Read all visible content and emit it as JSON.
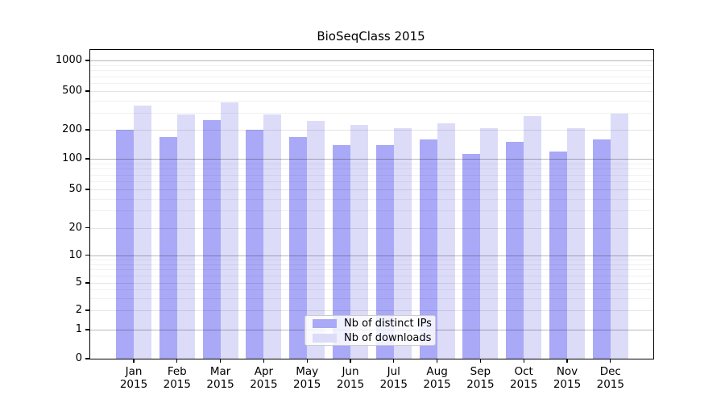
{
  "title": "BioSeqClass 2015",
  "chart_data": {
    "type": "bar",
    "title": "BioSeqClass 2015",
    "categories": [
      "Jan 2015",
      "Feb 2015",
      "Mar 2015",
      "Apr 2015",
      "May 2015",
      "Jun 2015",
      "Jul 2015",
      "Aug 2015",
      "Sep 2015",
      "Oct 2015",
      "Nov 2015",
      "Dec 2015"
    ],
    "series": [
      {
        "name": "Nb of distinct IPs",
        "color": "#a9a9f7",
        "values": [
          199,
          168,
          252,
          199,
          168,
          140,
          140,
          160,
          112,
          150,
          118,
          160
        ]
      },
      {
        "name": "Nb of downloads",
        "color": "#dcdcf9",
        "values": [
          355,
          288,
          385,
          290,
          245,
          226,
          206,
          231,
          207,
          278,
          206,
          292
        ]
      }
    ],
    "xlabel": "",
    "ylabel": "",
    "yscale": "log-with-zero",
    "ylim": [
      0,
      1000
    ],
    "yticks": [
      0,
      1,
      2,
      5,
      10,
      20,
      50,
      100,
      200,
      500,
      1000
    ],
    "minor_gridlines": [
      3,
      4,
      6,
      7,
      8,
      9,
      30,
      40,
      60,
      70,
      80,
      90,
      300,
      400,
      600,
      700,
      800,
      900
    ],
    "grid": true,
    "legend_position": "lower center"
  },
  "colors": {
    "background": "#ffffff",
    "axis": "#000000",
    "major_grid": "#b6b6b6",
    "minor_grid": "#ededed",
    "legend_border": "#cccccc"
  }
}
